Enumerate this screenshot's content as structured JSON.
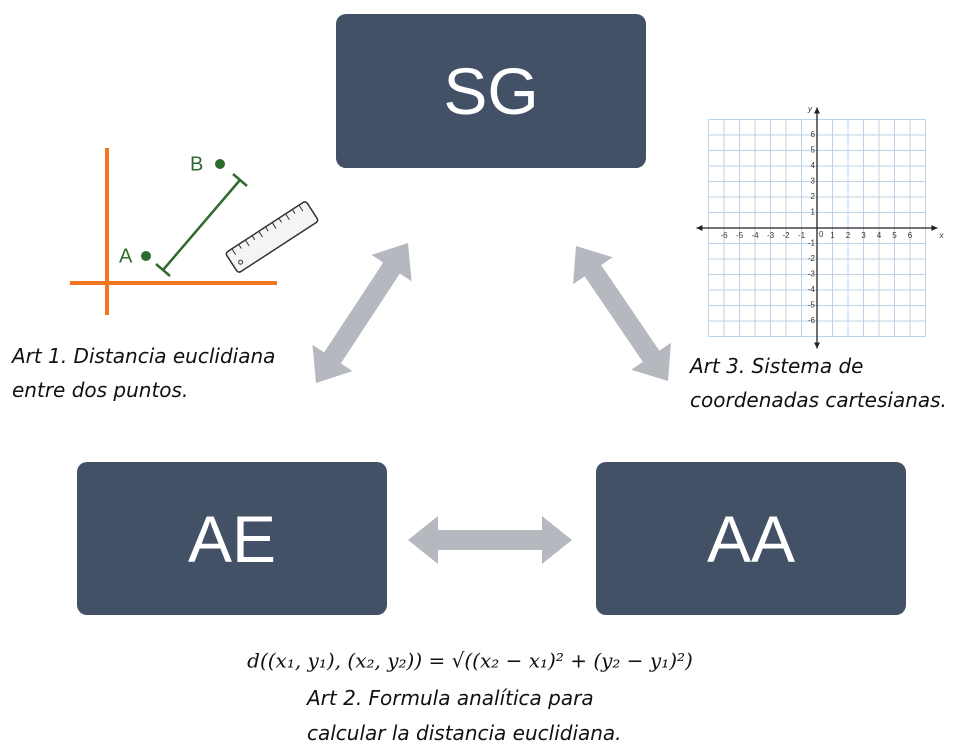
{
  "boxes": [
    {
      "label": "SG"
    },
    {
      "label": "AE"
    },
    {
      "label": "AA"
    }
  ],
  "art1": {
    "lines": [
      "Art 1. Distancia euclidiana",
      "entre dos puntos."
    ],
    "point_a": "A",
    "point_b": "B"
  },
  "art2": {
    "formula": "d((x₁, y₁), (x₂, y₂)) = √((x₂ − x₁)² + (y₂ − y₁)²)",
    "lines": [
      "Art 2. Formula analítica para",
      "calcular la distancia euclidiana."
    ]
  },
  "art3": {
    "lines": [
      "Art 3. Sistema de",
      "coordenadas cartesianas."
    ],
    "x_axis": "x",
    "y_axis": "y",
    "origin": "0",
    "x_ticks": [
      -6,
      -5,
      -4,
      -3,
      -2,
      -1,
      1,
      2,
      3,
      4,
      5,
      6
    ],
    "y_ticks": [
      6,
      5,
      4,
      3,
      2,
      1,
      -1,
      -2,
      -3,
      -4,
      -5,
      -6
    ]
  }
}
